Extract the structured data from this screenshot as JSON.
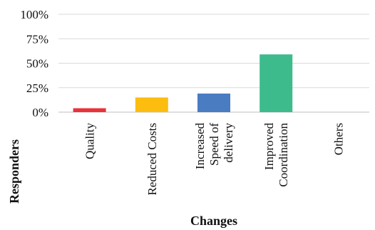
{
  "chart_data": {
    "type": "bar",
    "categories": [
      [
        "Quality"
      ],
      [
        "Reduced Costs"
      ],
      [
        "Increased",
        "Speed of",
        "delivery"
      ],
      [
        "Improved",
        "Coordination"
      ],
      [
        "Others"
      ]
    ],
    "values": [
      4,
      15,
      19,
      59,
      0
    ],
    "colors": [
      "#e8323c",
      "#fdbd0f",
      "#4a7cc2",
      "#3dbb8c",
      "#d9d9d9"
    ],
    "xlabel": "Changes",
    "ylabel": "Responders",
    "ylim": [
      0,
      100
    ],
    "yticks": [
      0,
      25,
      50,
      75,
      100
    ],
    "ytick_labels": [
      "0%",
      "25%",
      "50%",
      "75%",
      "100%"
    ],
    "grid": true,
    "gridline_color": "#d9d9d9"
  }
}
